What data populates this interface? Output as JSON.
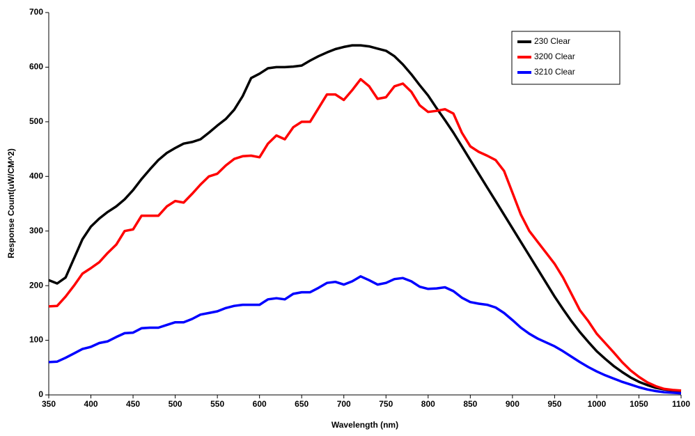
{
  "chart_data": {
    "type": "line",
    "x_label": "Wavelength (nm)",
    "y_label": "Response Count(uW/CM^2)",
    "x": [
      350,
      360,
      370,
      380,
      390,
      400,
      410,
      420,
      430,
      440,
      450,
      460,
      470,
      480,
      490,
      500,
      510,
      520,
      530,
      540,
      550,
      560,
      570,
      580,
      590,
      600,
      610,
      620,
      630,
      640,
      650,
      660,
      670,
      680,
      690,
      700,
      710,
      720,
      730,
      740,
      750,
      760,
      770,
      780,
      790,
      800,
      810,
      820,
      830,
      840,
      850,
      860,
      870,
      880,
      890,
      900,
      910,
      920,
      930,
      940,
      950,
      960,
      970,
      980,
      990,
      1000,
      1010,
      1020,
      1030,
      1040,
      1050,
      1060,
      1070,
      1080,
      1090,
      1100
    ],
    "series": [
      {
        "name": "230 Clear",
        "color": "#000000",
        "values": [
          210,
          204,
          215,
          250,
          285,
          308,
          323,
          335,
          345,
          358,
          375,
          395,
          413,
          430,
          443,
          452,
          460,
          463,
          468,
          480,
          493,
          505,
          522,
          547,
          580,
          588,
          598,
          600,
          600,
          601,
          603,
          612,
          620,
          627,
          633,
          637,
          640,
          640,
          638,
          634,
          630,
          620,
          605,
          587,
          567,
          548,
          525,
          503,
          480,
          455,
          430,
          405,
          380,
          355,
          330,
          305,
          280,
          255,
          230,
          205,
          180,
          157,
          135,
          115,
          97,
          80,
          66,
          53,
          42,
          32,
          24,
          18,
          13,
          10,
          8,
          7
        ]
      },
      {
        "name": "3200 Clear",
        "color": "#ff0000",
        "values": [
          162,
          163,
          180,
          200,
          222,
          232,
          243,
          260,
          275,
          300,
          303,
          328,
          328,
          328,
          345,
          355,
          352,
          368,
          385,
          400,
          405,
          420,
          432,
          437,
          438,
          435,
          460,
          475,
          468,
          490,
          500,
          500,
          525,
          550,
          550,
          540,
          558,
          578,
          565,
          542,
          545,
          565,
          570,
          555,
          530,
          518,
          520,
          523,
          515,
          480,
          455,
          445,
          438,
          430,
          410,
          370,
          330,
          300,
          280,
          260,
          240,
          215,
          185,
          155,
          135,
          112,
          95,
          78,
          60,
          45,
          33,
          23,
          16,
          11,
          9,
          8
        ]
      },
      {
        "name": "3210 Clear",
        "color": "#0000ff",
        "values": [
          60,
          61,
          68,
          76,
          84,
          88,
          95,
          98,
          106,
          113,
          114,
          122,
          123,
          123,
          128,
          133,
          133,
          139,
          147,
          150,
          153,
          159,
          163,
          165,
          165,
          165,
          175,
          177,
          175,
          185,
          188,
          188,
          196,
          205,
          207,
          202,
          208,
          217,
          210,
          202,
          205,
          212,
          214,
          208,
          198,
          194,
          195,
          197,
          190,
          178,
          170,
          167,
          165,
          160,
          150,
          137,
          123,
          112,
          103,
          96,
          89,
          80,
          70,
          60,
          51,
          43,
          36,
          30,
          24,
          19,
          14,
          10,
          7,
          5,
          4,
          3
        ]
      }
    ],
    "xlim": [
      350,
      1100
    ],
    "xticks": [
      350,
      400,
      450,
      500,
      550,
      600,
      650,
      700,
      750,
      800,
      850,
      900,
      950,
      1000,
      1050,
      1100
    ],
    "ylim": [
      0,
      700
    ],
    "yticks": [
      0,
      100,
      200,
      300,
      400,
      500,
      600,
      700
    ],
    "legend": "top right"
  }
}
